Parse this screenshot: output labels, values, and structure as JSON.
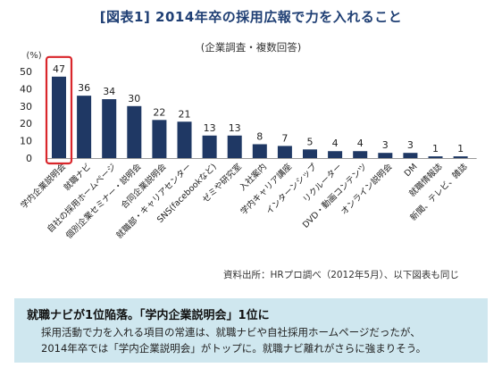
{
  "header": {
    "title": "[図表1] 2014年卒の採用広報で力を入れること",
    "subtitle": "(企業調査・複数回答)"
  },
  "source_note": "資料出所：HRプロ調べ（2012年5月）、以下図表も同じ",
  "summary": {
    "heading": "就職ナビが1位陥落。「学内企業説明会」1位に",
    "line1": "採用活動で力を入れる項目の常連は、就職ナビや自社採用ホームページだったが、",
    "line2": "2014年卒では「学内企業説明会」がトップに。就職ナビ離れがさらに強まりそう。"
  },
  "colors": {
    "bar": "#1f3864",
    "highlight": "#d9262b",
    "title": "#1f3f74",
    "note_bg": "#cfe7ef"
  },
  "chart_data": {
    "type": "bar",
    "title": "[図表1] 2014年卒の採用広報で力を入れること",
    "ylabel": "(%)",
    "ylim": [
      0,
      50
    ],
    "yticks": [
      0,
      10,
      20,
      30,
      40,
      50
    ],
    "grid": false,
    "highlight_index": 0,
    "categories": [
      "学内企業説明会",
      "就職ナビ",
      "自社の採用ホームページ",
      "個別企業セミナー・説明会",
      "合同企業説明会",
      "就職部・キャリアセンター",
      "SNS(facebookなど)",
      "ゼミや研究室",
      "入社案内",
      "学内キャリア講座",
      "インターンシップ",
      "リクルーター",
      "DVD・動画コンテンツ",
      "オンライン説明会",
      "DM",
      "就職情報誌",
      "新聞、テレビ、雑誌"
    ],
    "values": [
      47,
      36,
      34,
      30,
      22,
      21,
      13,
      13,
      8,
      7,
      5,
      4,
      4,
      3,
      3,
      1,
      1
    ]
  }
}
